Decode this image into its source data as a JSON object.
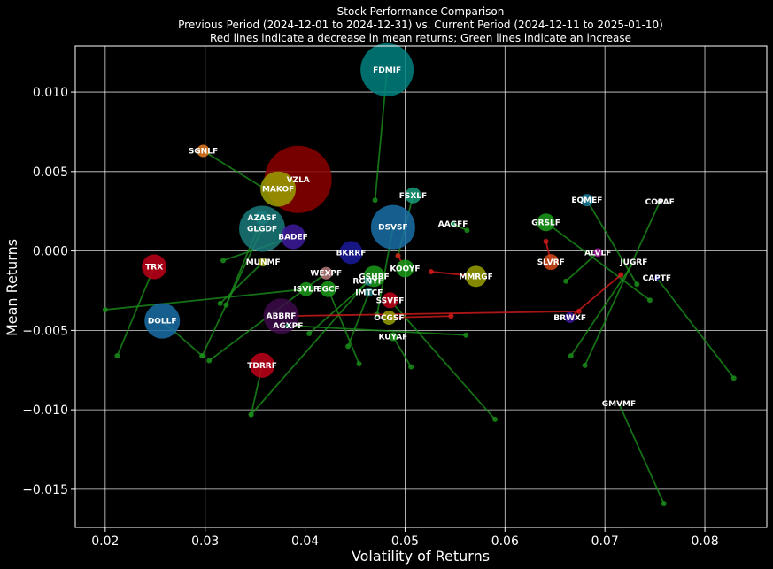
{
  "chart_data": {
    "type": "scatter",
    "title": [
      "Stock Performance Comparison",
      "Previous Period (2024-12-01 to 2024-12-31) vs. Current Period (2024-12-11 to 2025-01-10)",
      "Red lines indicate a decrease in mean returns; Green lines indicate an increase"
    ],
    "xlabel": "Volatility of Returns",
    "ylabel": "Mean Returns",
    "xlim": [
      0.017,
      0.0862
    ],
    "ylim": [
      -0.0174,
      0.0129
    ],
    "xticks": [
      0.02,
      0.03,
      0.04,
      0.05,
      0.06,
      0.07,
      0.08
    ],
    "xtick_labels": [
      "0.02",
      "0.03",
      "0.04",
      "0.05",
      "0.06",
      "0.07",
      "0.08"
    ],
    "yticks": [
      -0.015,
      -0.01,
      -0.005,
      0.0,
      0.005,
      0.01
    ],
    "ytick_labels": [
      "−0.015",
      "−0.010",
      "−0.005",
      "0.000",
      "0.005",
      "0.010"
    ],
    "grid": true,
    "colors": {
      "increase": "#1a8c1a",
      "decrease": "#d41a1a"
    },
    "stocks": [
      {
        "name": "FDMIF",
        "x": 0.0482,
        "y": 0.0114,
        "px": 0.047,
        "py": 0.0032,
        "size": 30,
        "color": "#008080"
      },
      {
        "name": "SGNLF",
        "x": 0.0298,
        "y": 0.0063,
        "px": 0.0378,
        "py": 0.0032,
        "size": 7,
        "color": "#e67e22"
      },
      {
        "name": "VZLA",
        "x": 0.0393,
        "y": 0.0045,
        "px": 0.0385,
        "py": 0.0033,
        "size": 38,
        "color": "#8b0000"
      },
      {
        "name": "MAKOF",
        "x": 0.0373,
        "y": 0.0039,
        "px": 0.0386,
        "py": 0.0033,
        "size": 20,
        "color": "#9aa000"
      },
      {
        "name": "FSXLF",
        "x": 0.0508,
        "y": 0.0035,
        "px": 0.0493,
        "py": -0.0003,
        "size": 9,
        "color": "#1a9c7a"
      },
      {
        "name": "EQMEF",
        "x": 0.0682,
        "y": 0.0032,
        "px": 0.0732,
        "py": -0.0021,
        "size": 7,
        "color": "#1a7a9c"
      },
      {
        "name": "COPAF",
        "x": 0.0755,
        "y": 0.0031,
        "px": 0.068,
        "py": -0.0072,
        "size": 3,
        "color": "#d0d0d0"
      },
      {
        "name": "AZASF",
        "x": 0.0357,
        "y": 0.0021,
        "px": 0.0321,
        "py": -0.0034,
        "size": 8,
        "color": "#1a7a7a"
      },
      {
        "name": "DSVSF",
        "x": 0.0488,
        "y": 0.0015,
        "px": 0.0472,
        "py": -0.004,
        "size": 25,
        "color": "#1a6fa6"
      },
      {
        "name": "AAGFF",
        "x": 0.0548,
        "y": 0.0017,
        "px": 0.0562,
        "py": 0.0013,
        "size": 3,
        "color": "#1a9c5c"
      },
      {
        "name": "GRSLF",
        "x": 0.0641,
        "y": 0.0018,
        "px": 0.0745,
        "py": -0.0031,
        "size": 10,
        "color": "#1a9c1a"
      },
      {
        "name": "GLGDF",
        "x": 0.0357,
        "y": 0.0014,
        "px": 0.0297,
        "py": -0.0066,
        "size": 26,
        "color": "#1a7a7a"
      },
      {
        "name": "BADEF",
        "x": 0.0388,
        "y": 0.0009,
        "px": 0.0318,
        "py": -0.0006,
        "size": 14,
        "color": "#3d1a9c"
      },
      {
        "name": "BKRRF",
        "x": 0.0446,
        "y": -0.0001,
        "px": 0.0449,
        "py": -0.0001,
        "size": 13,
        "color": "#1a1a9c"
      },
      {
        "name": "ALVLF",
        "x": 0.0693,
        "y": -0.0001,
        "px": 0.0661,
        "py": -0.0019,
        "size": 5,
        "color": "#9c1a9c"
      },
      {
        "name": "MUNMF",
        "x": 0.0358,
        "y": -0.0007,
        "px": 0.0315,
        "py": -0.0033,
        "size": 5,
        "color": "#9aa000"
      },
      {
        "name": "JUGRF",
        "x": 0.0729,
        "y": -0.0007,
        "px": 0.0666,
        "py": -0.0066,
        "size": 3,
        "color": "#1a1a1a"
      },
      {
        "name": "SLVRF",
        "x": 0.0646,
        "y": -0.0007,
        "px": 0.0641,
        "py": 0.0006,
        "size": 9,
        "color": "#d44a1a"
      },
      {
        "name": "TRX",
        "x": 0.0249,
        "y": -0.001,
        "px": 0.0212,
        "py": -0.0066,
        "size": 14,
        "color": "#c0001a"
      },
      {
        "name": "KOOYF",
        "x": 0.05,
        "y": -0.0011,
        "px": 0.0493,
        "py": -0.0003,
        "size": 10,
        "color": "#1a9c1a"
      },
      {
        "name": "WEXPF",
        "x": 0.0421,
        "y": -0.0014,
        "px": 0.0304,
        "py": -0.0069,
        "size": 7,
        "color": "#b87a7a"
      },
      {
        "name": "GSHRF",
        "x": 0.0469,
        "y": -0.0016,
        "px": 0.0404,
        "py": -0.0052,
        "size": 12,
        "color": "#1a9c1a"
      },
      {
        "name": "MMRGF",
        "x": 0.0571,
        "y": -0.0016,
        "px": 0.0526,
        "py": -0.0013,
        "size": 12,
        "color": "#9aa000"
      },
      {
        "name": "RGNYF",
        "x": 0.0463,
        "y": -0.0019,
        "px": 0.0346,
        "py": -0.0103,
        "size": 5,
        "color": "#1a7a7a"
      },
      {
        "name": "CAPTF",
        "x": 0.0752,
        "y": -0.0017,
        "px": 0.0829,
        "py": -0.008,
        "size": 3,
        "color": "#1a1a9c"
      },
      {
        "name": "ISVLF",
        "x": 0.0401,
        "y": -0.0024,
        "px": 0.02,
        "py": -0.0037,
        "size": 8,
        "color": "#1a9c1a"
      },
      {
        "name": "EGCF",
        "x": 0.0423,
        "y": -0.0024,
        "px": 0.0454,
        "py": -0.0071,
        "size": 9,
        "color": "#1a9c1a"
      },
      {
        "name": "IMTCF",
        "x": 0.0464,
        "y": -0.0026,
        "px": 0.0443,
        "py": -0.006,
        "size": 5,
        "color": "#1a7a7a"
      },
      {
        "name": "SSVFF",
        "x": 0.0485,
        "y": -0.0031,
        "px": 0.059,
        "py": -0.0106,
        "size": 9,
        "color": "#c0001a"
      },
      {
        "name": "ABBRF",
        "x": 0.0376,
        "y": -0.0041,
        "px": 0.0674,
        "py": -0.0038,
        "size": 20,
        "color": "#3d0a4a"
      },
      {
        "name": "OCGSF",
        "x": 0.0484,
        "y": -0.0042,
        "px": 0.0546,
        "py": -0.0041,
        "size": 8,
        "color": "#9aa000"
      },
      {
        "name": "DOLLF",
        "x": 0.0257,
        "y": -0.0044,
        "px": 0.0297,
        "py": -0.0066,
        "size": 20,
        "color": "#1a6fa6"
      },
      {
        "name": "BRWXF",
        "x": 0.0665,
        "y": -0.0042,
        "px": 0.0716,
        "py": -0.0015,
        "size": 6,
        "color": "#3d1a9c"
      },
      {
        "name": "AGXPF",
        "x": 0.0383,
        "y": -0.0047,
        "px": 0.0561,
        "py": -0.0053,
        "size": 3,
        "color": "#1a9c5c"
      },
      {
        "name": "KUYAF",
        "x": 0.0488,
        "y": -0.0054,
        "px": 0.0506,
        "py": -0.0073,
        "size": 5,
        "color": "#1a9c1a"
      },
      {
        "name": "TDRRF",
        "x": 0.0357,
        "y": -0.0072,
        "px": 0.0346,
        "py": -0.0103,
        "size": 14,
        "color": "#c0001a"
      },
      {
        "name": "GMVMF",
        "x": 0.0714,
        "y": -0.0096,
        "px": 0.0759,
        "py": -0.0159,
        "size": 3,
        "color": "#1a1a1a"
      }
    ]
  }
}
